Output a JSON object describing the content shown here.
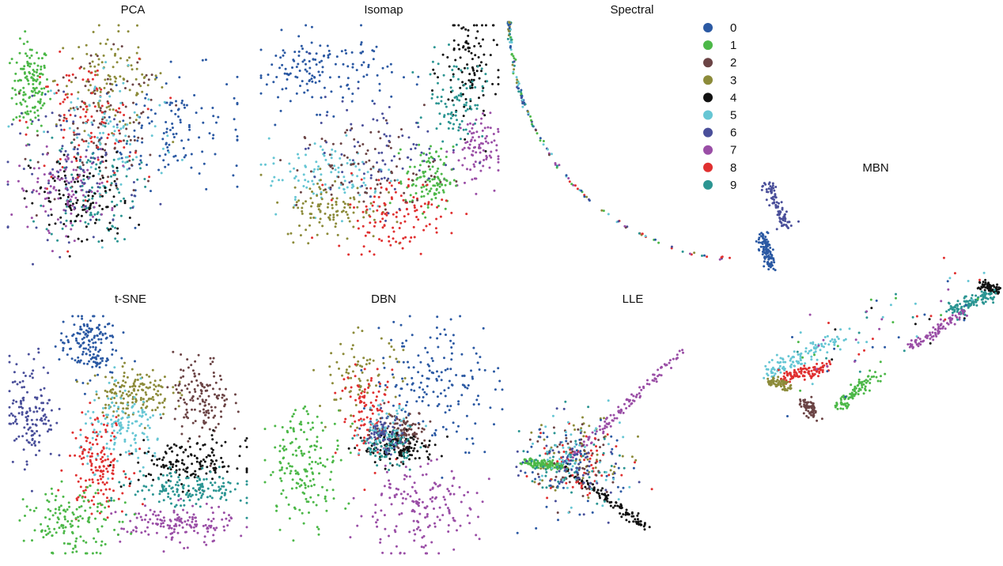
{
  "chart_data": {
    "type": "scatter",
    "description": "Small-multiples grid of 2-D embeddings colored by digit class 0-9",
    "legend": {
      "placement": "top-right",
      "entries": [
        {
          "label": "0",
          "color": "#2b59a3"
        },
        {
          "label": "1",
          "color": "#4cb848"
        },
        {
          "label": "2",
          "color": "#6b4445"
        },
        {
          "label": "3",
          "color": "#8c8b3a"
        },
        {
          "label": "4",
          "color": "#111111"
        },
        {
          "label": "5",
          "color": "#66c6d4"
        },
        {
          "label": "6",
          "color": "#4a4f9a"
        },
        {
          "label": "7",
          "color": "#9a4ea6"
        },
        {
          "label": "8",
          "color": "#e03030"
        },
        {
          "label": "9",
          "color": "#2b9592"
        }
      ]
    },
    "axes": {
      "visible": false,
      "grid": false
    },
    "panels": [
      {
        "title": "PCA",
        "clusters": [
          {
            "class": "1",
            "cx": 0.1,
            "cy": 0.75,
            "sx": 0.04,
            "sy": 0.09,
            "n": 140
          },
          {
            "class": "0",
            "cx": 0.72,
            "cy": 0.58,
            "sx": 0.16,
            "sy": 0.12,
            "n": 130
          },
          {
            "class": "3",
            "cx": 0.45,
            "cy": 0.78,
            "sx": 0.12,
            "sy": 0.1,
            "n": 110
          },
          {
            "class": "2",
            "cx": 0.42,
            "cy": 0.58,
            "sx": 0.13,
            "sy": 0.14,
            "n": 120
          },
          {
            "class": "8",
            "cx": 0.33,
            "cy": 0.6,
            "sx": 0.12,
            "sy": 0.13,
            "n": 100
          },
          {
            "class": "5",
            "cx": 0.44,
            "cy": 0.55,
            "sx": 0.15,
            "sy": 0.16,
            "n": 90
          },
          {
            "class": "9",
            "cx": 0.36,
            "cy": 0.33,
            "sx": 0.1,
            "sy": 0.11,
            "n": 110
          },
          {
            "class": "4",
            "cx": 0.32,
            "cy": 0.28,
            "sx": 0.11,
            "sy": 0.1,
            "n": 110
          },
          {
            "class": "7",
            "cx": 0.24,
            "cy": 0.33,
            "sx": 0.1,
            "sy": 0.08,
            "n": 110
          },
          {
            "class": "6",
            "cx": 0.3,
            "cy": 0.42,
            "sx": 0.14,
            "sy": 0.14,
            "n": 90
          }
        ]
      },
      {
        "title": "Isomap",
        "clusters": [
          {
            "class": "0",
            "cx": 0.25,
            "cy": 0.8,
            "sx": 0.15,
            "sy": 0.08,
            "n": 150
          },
          {
            "class": "4",
            "cx": 0.88,
            "cy": 0.8,
            "sx": 0.06,
            "sy": 0.14,
            "n": 110
          },
          {
            "class": "9",
            "cx": 0.82,
            "cy": 0.68,
            "sx": 0.06,
            "sy": 0.09,
            "n": 90
          },
          {
            "class": "7",
            "cx": 0.9,
            "cy": 0.45,
            "sx": 0.05,
            "sy": 0.08,
            "n": 90
          },
          {
            "class": "1",
            "cx": 0.71,
            "cy": 0.33,
            "sx": 0.05,
            "sy": 0.07,
            "n": 110
          },
          {
            "class": "5",
            "cx": 0.3,
            "cy": 0.35,
            "sx": 0.14,
            "sy": 0.08,
            "n": 110
          },
          {
            "class": "3",
            "cx": 0.3,
            "cy": 0.2,
            "sx": 0.1,
            "sy": 0.07,
            "n": 110
          },
          {
            "class": "8",
            "cx": 0.55,
            "cy": 0.18,
            "sx": 0.12,
            "sy": 0.08,
            "n": 120
          },
          {
            "class": "2",
            "cx": 0.45,
            "cy": 0.38,
            "sx": 0.15,
            "sy": 0.1,
            "n": 90
          },
          {
            "class": "6",
            "cx": 0.5,
            "cy": 0.45,
            "sx": 0.15,
            "sy": 0.12,
            "n": 80
          }
        ]
      },
      {
        "title": "Spectral",
        "shape": "arc-from-top-left-to-bottom-right",
        "class_order_along_arc": [
          "0",
          "1",
          "3",
          "5",
          "9",
          "6",
          "2",
          "7",
          "8"
        ]
      },
      {
        "title": "t-SNE",
        "clusters": [
          {
            "class": "0",
            "cx": 0.33,
            "cy": 0.88,
            "sx": 0.06,
            "sy": 0.07,
            "n": 160
          },
          {
            "class": "6",
            "cx": 0.09,
            "cy": 0.6,
            "sx": 0.05,
            "sy": 0.11,
            "n": 140
          },
          {
            "class": "3",
            "cx": 0.52,
            "cy": 0.68,
            "sx": 0.08,
            "sy": 0.05,
            "n": 150
          },
          {
            "class": "2",
            "cx": 0.81,
            "cy": 0.65,
            "sx": 0.06,
            "sy": 0.09,
            "n": 140
          },
          {
            "class": "5",
            "cx": 0.48,
            "cy": 0.52,
            "sx": 0.09,
            "sy": 0.08,
            "n": 150
          },
          {
            "class": "8",
            "cx": 0.37,
            "cy": 0.38,
            "sx": 0.06,
            "sy": 0.1,
            "n": 150
          },
          {
            "class": "4",
            "cx": 0.76,
            "cy": 0.38,
            "sx": 0.12,
            "sy": 0.05,
            "n": 150
          },
          {
            "class": "9",
            "cx": 0.76,
            "cy": 0.27,
            "sx": 0.12,
            "sy": 0.04,
            "n": 150
          },
          {
            "class": "7",
            "cx": 0.7,
            "cy": 0.12,
            "sx": 0.12,
            "sy": 0.04,
            "n": 150
          },
          {
            "class": "1",
            "cx": 0.27,
            "cy": 0.13,
            "sx": 0.1,
            "sy": 0.07,
            "n": 150
          }
        ]
      },
      {
        "title": "DBN",
        "clusters": [
          {
            "class": "1",
            "cx": 0.17,
            "cy": 0.38,
            "sx": 0.08,
            "sy": 0.12,
            "n": 170
          },
          {
            "class": "0",
            "cx": 0.72,
            "cy": 0.73,
            "sx": 0.13,
            "sy": 0.14,
            "n": 170
          },
          {
            "class": "7",
            "cx": 0.63,
            "cy": 0.18,
            "sx": 0.13,
            "sy": 0.1,
            "n": 170
          },
          {
            "class": "3",
            "cx": 0.4,
            "cy": 0.75,
            "sx": 0.09,
            "sy": 0.09,
            "n": 80
          },
          {
            "class": "8",
            "cx": 0.44,
            "cy": 0.6,
            "sx": 0.06,
            "sy": 0.1,
            "n": 100
          },
          {
            "class": "2",
            "cx": 0.57,
            "cy": 0.52,
            "sx": 0.06,
            "sy": 0.04,
            "n": 120
          },
          {
            "class": "4",
            "cx": 0.57,
            "cy": 0.44,
            "sx": 0.08,
            "sy": 0.03,
            "n": 120
          },
          {
            "class": "9",
            "cx": 0.52,
            "cy": 0.45,
            "sx": 0.05,
            "sy": 0.04,
            "n": 80
          },
          {
            "class": "5",
            "cx": 0.5,
            "cy": 0.52,
            "sx": 0.05,
            "sy": 0.05,
            "n": 60
          },
          {
            "class": "6",
            "cx": 0.5,
            "cy": 0.5,
            "sx": 0.04,
            "sy": 0.04,
            "n": 60
          }
        ]
      },
      {
        "title": "LLE",
        "shape": "three-armed-star",
        "arms": [
          {
            "class": "7",
            "direction": "upper-right"
          },
          {
            "class": "4",
            "direction": "lower-right"
          },
          {
            "class": "1",
            "direction": "left"
          }
        ],
        "center_classes": [
          "3",
          "8",
          "2",
          "9",
          "0",
          "5",
          "6"
        ]
      },
      {
        "title": "MBN",
        "shape": "stretched-manifold",
        "segments": [
          {
            "class": "6",
            "location": "top-left vertical streak"
          },
          {
            "class": "0",
            "location": "upper-left below class 6"
          },
          {
            "class": "4",
            "location": "far right tip"
          },
          {
            "class": "9",
            "location": "right near tip"
          },
          {
            "class": "7",
            "location": "diagonal band toward right"
          },
          {
            "class": "1",
            "location": "lower-middle"
          },
          {
            "class": "5",
            "location": "left arc"
          },
          {
            "class": "8",
            "location": "left-middle horizontal"
          },
          {
            "class": "3",
            "location": "left bottom"
          },
          {
            "class": "2",
            "location": "bottom middle"
          }
        ]
      }
    ]
  }
}
